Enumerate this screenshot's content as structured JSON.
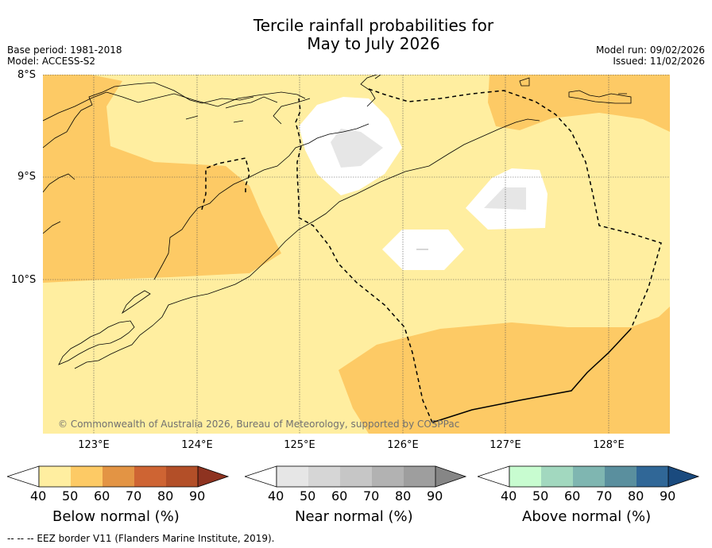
{
  "title": {
    "line1": "Tercile rainfall probabilities for",
    "line2": "May to July 2026"
  },
  "meta_left": {
    "base_period": "Base period: 1981-2018",
    "model": "Model: ACCESS-S2"
  },
  "meta_right": {
    "model_run": "Model run: 09/02/2026",
    "issued": "Issued: 11/02/2026"
  },
  "latitude_labels": [
    "8°S",
    "9°S",
    "10°S"
  ],
  "longitude_labels": [
    "123°E",
    "124°E",
    "125°E",
    "126°E",
    "127°E",
    "128°E"
  ],
  "copyright": "© Commonwealth of Australia 2026, Bureau of Meteorology, supported by COSPPac",
  "colorbars": [
    {
      "label": "Below normal (%)",
      "ticks": [
        "40",
        "50",
        "60",
        "70",
        "80",
        "90"
      ],
      "colors": [
        "#ffeea0",
        "#fdca65",
        "#e39444",
        "#ce6433",
        "#b34f28",
        "#8e3320"
      ]
    },
    {
      "label": "Near normal (%)",
      "ticks": [
        "40",
        "50",
        "60",
        "70",
        "80",
        "90"
      ],
      "colors": [
        "#e6e6e6",
        "#d6d6d6",
        "#c6c6c6",
        "#b2b2b2",
        "#9e9e9e",
        "#868686"
      ]
    },
    {
      "label": "Above normal (%)",
      "ticks": [
        "40",
        "50",
        "60",
        "70",
        "80",
        "90"
      ],
      "colors": [
        "#c8fcd0",
        "#a2d8bf",
        "#7fb6b1",
        "#5a8f9e",
        "#306797",
        "#1a4a7e"
      ]
    }
  ],
  "footnote": "--  --  -- EEZ border V11 (Flanders Marine Institute, 2019).",
  "colors": {
    "below_50": "#ffeea0",
    "below_60": "#fdca65",
    "near_50": "#e6e6e6",
    "no_signal": "#ffffff"
  }
}
